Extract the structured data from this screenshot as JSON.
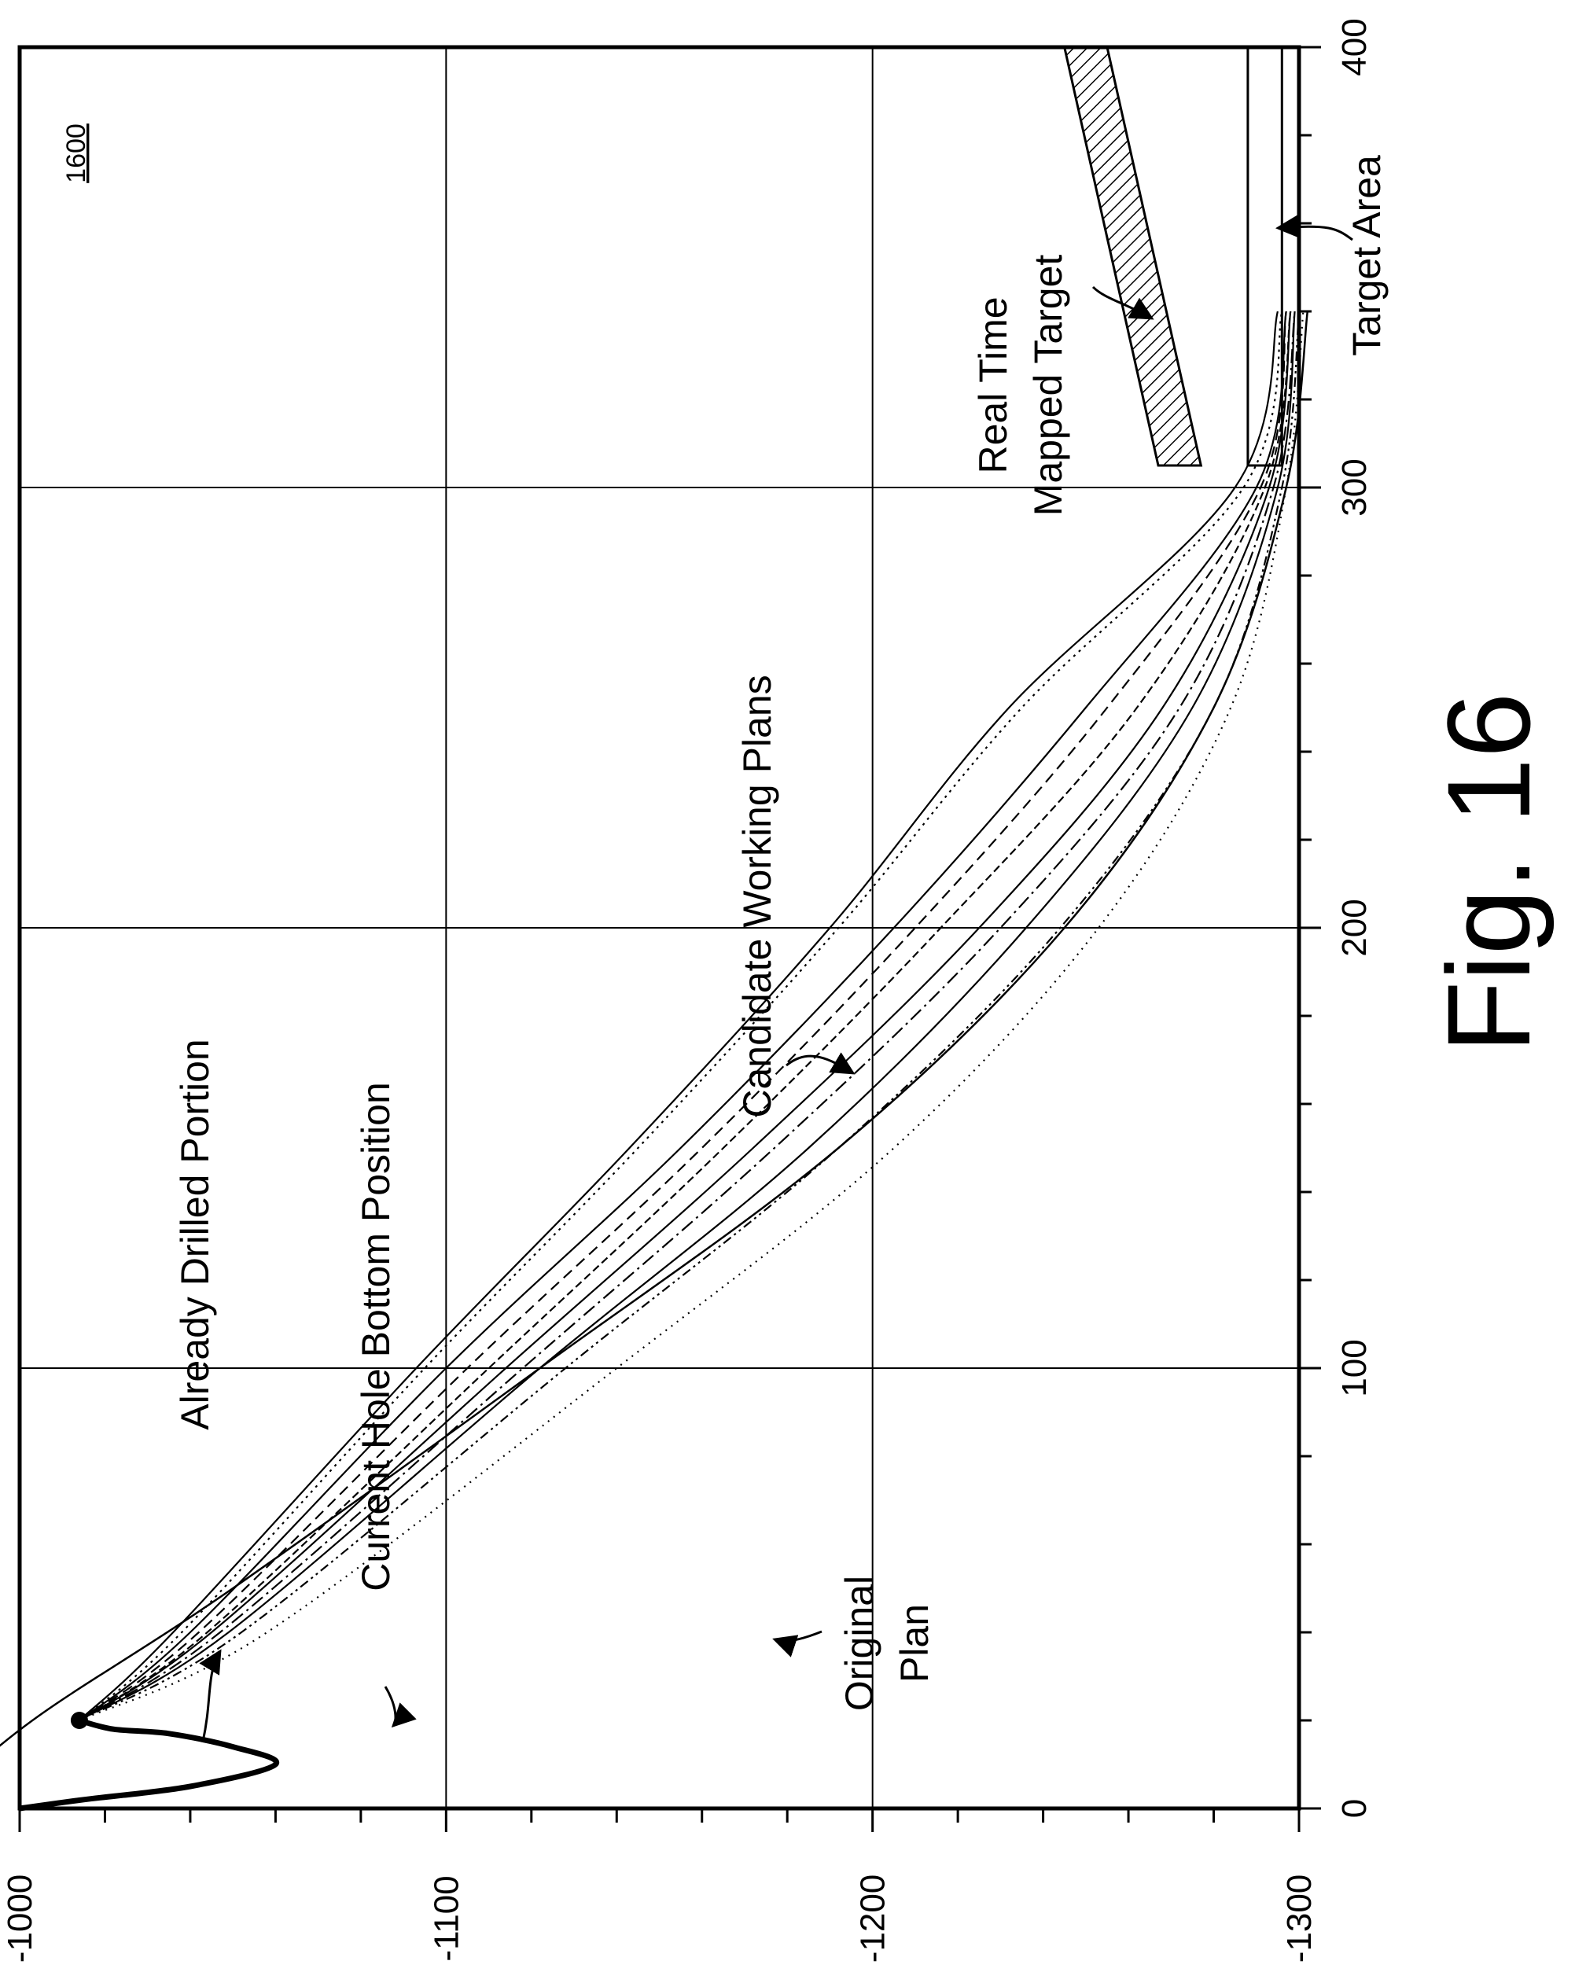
{
  "figure": {
    "label": "Fig. 16",
    "reference_number": "1600"
  },
  "chart_data": {
    "type": "line",
    "title": "",
    "xlabel": "",
    "ylabel": "",
    "xlim": [
      0,
      400
    ],
    "ylim": [
      -1300,
      -1000
    ],
    "x_ticks": [
      "0",
      "100",
      "200",
      "300",
      "400"
    ],
    "y_ticks": [
      "-1000",
      "-1100",
      "-1200",
      "-1300"
    ],
    "grid": true,
    "series": [
      {
        "name": "Already Drilled Portion",
        "style": "thick",
        "points": [
          [
            0,
            -1000
          ],
          [
            2,
            -1015
          ],
          [
            5,
            -1040
          ],
          [
            10,
            -1060
          ],
          [
            14,
            -1050
          ],
          [
            17,
            -1035
          ],
          [
            18,
            -1022
          ],
          [
            20,
            -1014
          ]
        ]
      },
      {
        "name": "Original Plan",
        "style": "solid",
        "points": [
          [
            0,
            -979
          ],
          [
            20,
            -1003
          ],
          [
            50,
            -1050
          ],
          [
            100,
            -1122
          ],
          [
            150,
            -1192
          ],
          [
            200,
            -1245
          ],
          [
            250,
            -1280
          ],
          [
            300,
            -1297
          ],
          [
            340,
            -1302
          ]
        ]
      },
      {
        "name": "Candidate Working Plans",
        "style": "mixed",
        "family": [
          {
            "dash": "",
            "points": [
              [
                20,
                -1014
              ],
              [
                40,
                -1036
              ],
              [
                100,
                -1093
              ],
              [
                150,
                -1143
              ],
              [
                200,
                -1190
              ],
              [
                250,
                -1232
              ],
              [
                300,
                -1285
              ],
              [
                340,
                -1295
              ]
            ]
          },
          {
            "dash": "3,6",
            "points": [
              [
                20,
                -1014
              ],
              [
                40,
                -1038
              ],
              [
                100,
                -1095
              ],
              [
                150,
                -1145
              ],
              [
                200,
                -1192
              ],
              [
                250,
                -1235
              ],
              [
                300,
                -1287
              ],
              [
                340,
                -1296
              ]
            ]
          },
          {
            "dash": "",
            "points": [
              [
                20,
                -1014
              ],
              [
                40,
                -1040
              ],
              [
                100,
                -1100
              ],
              [
                150,
                -1155
              ],
              [
                200,
                -1205
              ],
              [
                250,
                -1250
              ],
              [
                300,
                -1290
              ],
              [
                340,
                -1297
              ]
            ]
          },
          {
            "dash": "14,8",
            "points": [
              [
                20,
                -1014
              ],
              [
                40,
                -1042
              ],
              [
                100,
                -1105
              ],
              [
                150,
                -1160
              ],
              [
                200,
                -1210
              ],
              [
                250,
                -1255
              ],
              [
                300,
                -1291
              ],
              [
                340,
                -1297
              ]
            ]
          },
          {
            "dash": "10,5",
            "points": [
              [
                20,
                -1014
              ],
              [
                40,
                -1044
              ],
              [
                100,
                -1110
              ],
              [
                150,
                -1165
              ],
              [
                200,
                -1216
              ],
              [
                250,
                -1262
              ],
              [
                300,
                -1292
              ],
              [
                340,
                -1298
              ]
            ]
          },
          {
            "dash": "",
            "points": [
              [
                20,
                -1014
              ],
              [
                40,
                -1045
              ],
              [
                100,
                -1114
              ],
              [
                150,
                -1172
              ],
              [
                200,
                -1225
              ],
              [
                250,
                -1268
              ],
              [
                300,
                -1293
              ],
              [
                340,
                -1298
              ]
            ]
          },
          {
            "dash": "18,6,3,6",
            "points": [
              [
                20,
                -1014
              ],
              [
                40,
                -1047
              ],
              [
                100,
                -1118
              ],
              [
                150,
                -1177
              ],
              [
                200,
                -1230
              ],
              [
                250,
                -1272
              ],
              [
                300,
                -1294
              ],
              [
                340,
                -1299
              ]
            ]
          },
          {
            "dash": "",
            "points": [
              [
                20,
                -1014
              ],
              [
                40,
                -1049
              ],
              [
                100,
                -1122
              ],
              [
                150,
                -1185
              ],
              [
                200,
                -1236
              ],
              [
                250,
                -1275
              ],
              [
                300,
                -1295
              ],
              [
                340,
                -1299
              ]
            ]
          },
          {
            "dash": "12,5,3,5,3,5",
            "points": [
              [
                20,
                -1014
              ],
              [
                40,
                -1052
              ],
              [
                100,
                -1128
              ],
              [
                150,
                -1192
              ],
              [
                200,
                -1244
              ],
              [
                250,
                -1280
              ],
              [
                300,
                -1296
              ],
              [
                340,
                -1300
              ]
            ]
          },
          {
            "dash": "2,7",
            "points": [
              [
                20,
                -1014
              ],
              [
                40,
                -1058
              ],
              [
                100,
                -1140
              ],
              [
                150,
                -1205
              ],
              [
                200,
                -1253
              ],
              [
                250,
                -1284
              ],
              [
                300,
                -1297
              ],
              [
                340,
                -1301
              ]
            ]
          }
        ]
      }
    ],
    "annotations": [
      {
        "text": "Already Drilled Portion"
      },
      {
        "text": "Current Hole Bottom Position",
        "x": 20,
        "y": -1014
      },
      {
        "text": "Candidate Working Plans"
      },
      {
        "text_lines": [
          "Original",
          "Plan"
        ]
      },
      {
        "text_lines": [
          "Real Time",
          "Mapped Target"
        ]
      },
      {
        "text": "Target Area"
      }
    ],
    "regions": [
      {
        "name": "Real Time Mapped Target",
        "fill": "hatched",
        "corners": [
          [
            305,
            -1277
          ],
          [
            400,
            -1255
          ],
          [
            400,
            -1245
          ],
          [
            305,
            -1267
          ]
        ]
      },
      {
        "name": "Target Area",
        "fill": "none",
        "x_range": [
          305,
          400
        ],
        "y_range": [
          -1288,
          -1296
        ]
      }
    ]
  }
}
